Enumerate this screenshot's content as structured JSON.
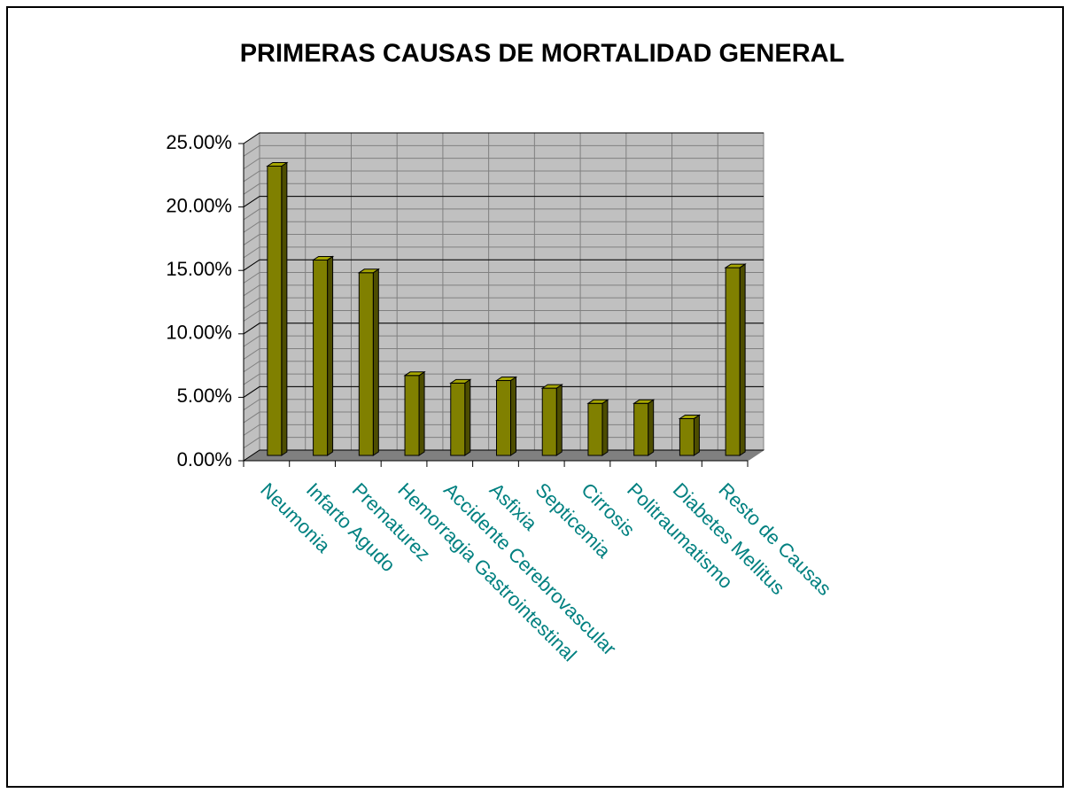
{
  "chart_data": {
    "type": "bar3d",
    "title": "PRIMERAS CAUSAS DE MORTALIDAD GENERAL",
    "categories": [
      "Neumonia",
      "Infarto Agudo",
      "Prematurez",
      "Hemorragia Gastrointestinal",
      "Accidente Cerebrovascular",
      "Asfixia",
      "Septicemia",
      "Cirrosis",
      "Politraumatismo",
      "Diabetes Mellitus",
      "Resto de Causas"
    ],
    "values": [
      22.8,
      15.4,
      14.4,
      6.3,
      5.7,
      5.9,
      5.3,
      4.1,
      4.1,
      2.9,
      14.8
    ],
    "color": "#808000",
    "ylim": [
      0,
      25
    ],
    "yticks": [
      {
        "value": 0,
        "label": "0.00%"
      },
      {
        "value": 5,
        "label": "5.00%"
      },
      {
        "value": 10,
        "label": "10.00%"
      },
      {
        "value": 15,
        "label": "15.00%"
      },
      {
        "value": 20,
        "label": "20.00%"
      },
      {
        "value": 25,
        "label": "25.00%"
      }
    ],
    "grid": true
  }
}
